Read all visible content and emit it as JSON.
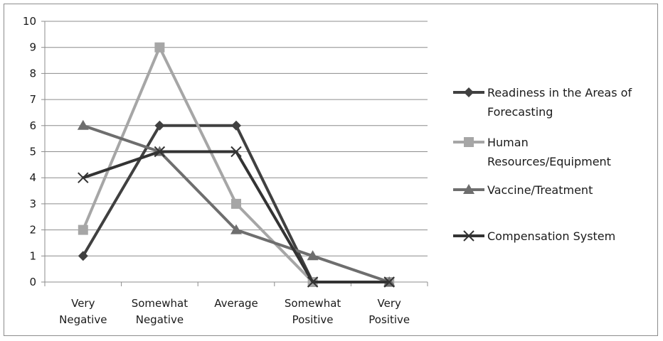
{
  "chart_data": {
    "type": "line",
    "categories": [
      [
        "Very",
        "Negative"
      ],
      [
        "Somewhat",
        "Negative"
      ],
      [
        "Average"
      ],
      [
        "Somewhat",
        "Positive"
      ],
      [
        "Very",
        "Positive"
      ]
    ],
    "ylim": [
      0,
      10
    ],
    "yticks": [
      0,
      1,
      2,
      3,
      4,
      5,
      6,
      7,
      8,
      9,
      10
    ],
    "grid": true,
    "legend_position": "right",
    "series": [
      {
        "name_lines": [
          "Readiness in the Areas of",
          "Forecasting"
        ],
        "values": [
          1,
          6,
          6,
          0,
          0
        ],
        "color": "#404040",
        "marker": "diamond"
      },
      {
        "name_lines": [
          "Human",
          "Resources/Equipment"
        ],
        "values": [
          2,
          9,
          3,
          0,
          0
        ],
        "color": "#a6a6a6",
        "marker": "square"
      },
      {
        "name_lines": [
          "Vaccine/Treatment"
        ],
        "values": [
          6,
          5,
          2,
          1,
          0
        ],
        "color": "#6e6e6e",
        "marker": "triangle"
      },
      {
        "name_lines": [
          "Compensation System"
        ],
        "values": [
          4,
          5,
          5,
          0,
          0
        ],
        "color": "#333333",
        "marker": "x"
      }
    ]
  }
}
